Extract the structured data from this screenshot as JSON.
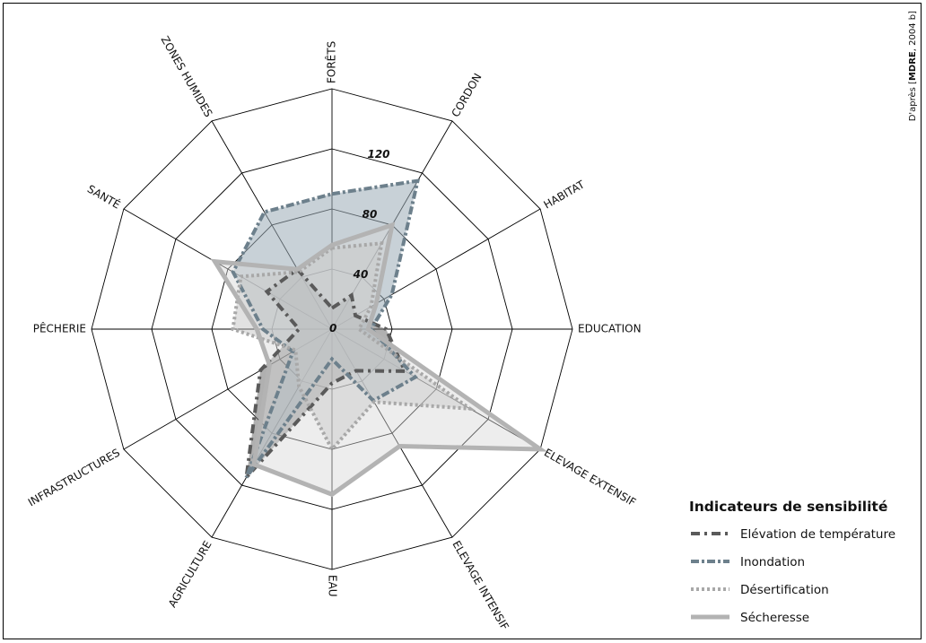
{
  "chart_data": {
    "type": "radar",
    "title": "",
    "axes": [
      "FORÊTS",
      "CORDON",
      "HABITAT",
      "EDUCATION",
      "ELEVAGE EXTENSIF",
      "ELEVAGE INTENSIF",
      "EAU",
      "AGRICULTURE",
      "INFRASTRUCTURES",
      "PÊCHERIE",
      "SANTÉ",
      "ZONES HUMIDES"
    ],
    "ticks": [
      "0",
      "40",
      "80",
      "120"
    ],
    "rmax": 160,
    "grid": true,
    "legend_position": "bottom-right",
    "legend_title": "Indicateurs de sensibilité",
    "series": [
      {
        "name": "Elévation de température",
        "values": [
          14,
          26,
          18,
          36,
          56,
          32,
          36,
          114,
          55,
          22,
          50,
          46
        ],
        "color": "#5a5a5a",
        "fill": "#707070",
        "fill_opacity": 0.55,
        "stroke_dasharray": "10 5 3 5",
        "stroke_width": 4
      },
      {
        "name": "Inondation",
        "values": [
          90,
          114,
          46,
          26,
          64,
          55,
          20,
          114,
          30,
          46,
          76,
          90
        ],
        "color": "#6d808c",
        "fill": "#9aabb6",
        "fill_opacity": 0.55,
        "stroke_dasharray": "9 3 3 3",
        "stroke_width": 4
      },
      {
        "name": "Désertification",
        "values": [
          54,
          66,
          30,
          18,
          106,
          56,
          80,
          44,
          28,
          66,
          70,
          44
        ],
        "color": "#a8a8a8",
        "fill": "#bdbdbd",
        "fill_opacity": 0.45,
        "stroke_dasharray": "3 3",
        "stroke_width": 4
      },
      {
        "name": "Sécheresse",
        "values": [
          56,
          80,
          34,
          24,
          160,
          90,
          110,
          104,
          48,
          50,
          90,
          46
        ],
        "color": "#b3b3b3",
        "fill": "#d6d6d6",
        "fill_opacity": 0.45,
        "stroke_dasharray": "",
        "stroke_width": 5
      }
    ]
  },
  "source": {
    "prefix": "D'après [",
    "bold": "MDRE",
    "suffix": ", 2004 b]"
  }
}
